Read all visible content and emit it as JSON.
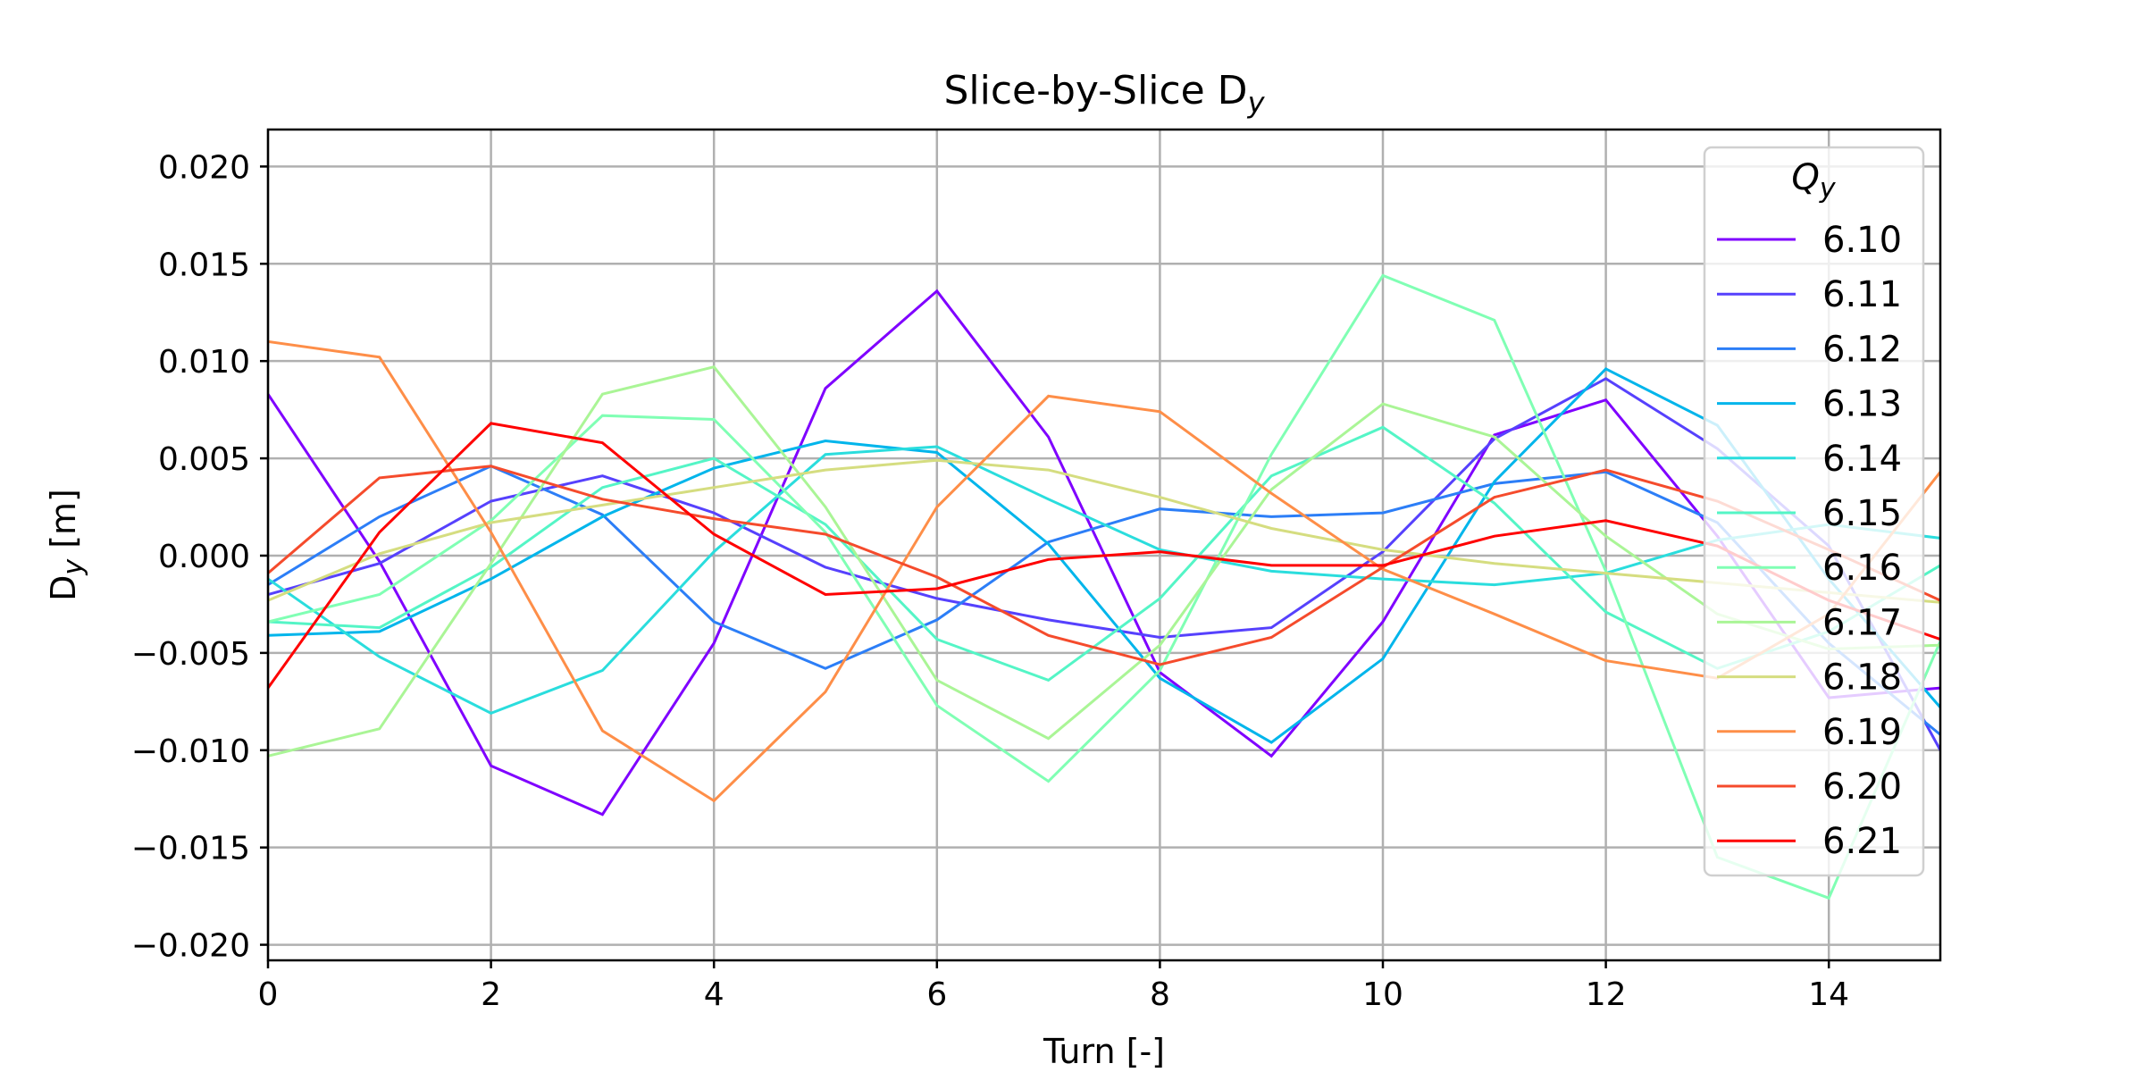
{
  "chart_data": {
    "type": "line",
    "title": "Slice-by-Slice D",
    "title_subscript": "y",
    "xlabel": "Turn [-]",
    "ylabel_main": "D",
    "ylabel_sub": "y",
    "ylabel_unit": " [m]",
    "xlim": [
      0,
      15
    ],
    "ylim": [
      -0.0208,
      0.0219
    ],
    "x_ticks": [
      0,
      2,
      4,
      6,
      8,
      10,
      12,
      14
    ],
    "y_ticks": [
      -0.02,
      -0.015,
      -0.01,
      -0.005,
      0.0,
      0.005,
      0.01,
      0.015,
      0.02
    ],
    "y_tick_labels": [
      "−0.020",
      "−0.015",
      "−0.010",
      "−0.005",
      "0.000",
      "0.005",
      "0.010",
      "0.015",
      "0.020"
    ],
    "grid": true,
    "legend": {
      "title": "Q",
      "title_subscript": "y",
      "position": "top-right"
    },
    "x": [
      0,
      1,
      2,
      3,
      4,
      5,
      6,
      7,
      8,
      9,
      10,
      11,
      12,
      13,
      14,
      15
    ],
    "series": [
      {
        "name": "6.10",
        "color": "#7f00ff",
        "values": [
          0.0083,
          -0.0003,
          -0.0108,
          -0.0133,
          -0.0045,
          0.0086,
          0.0136,
          0.0061,
          -0.006,
          -0.0103,
          -0.0034,
          0.0062,
          0.008,
          0.001,
          -0.0073,
          -0.0068
        ]
      },
      {
        "name": "6.11",
        "color": "#5641fd",
        "values": [
          -0.002,
          -0.0004,
          0.0028,
          0.0041,
          0.0022,
          -0.0006,
          -0.0022,
          -0.0033,
          -0.0042,
          -0.0037,
          0.0002,
          0.006,
          0.0091,
          0.0055,
          0.0005,
          -0.01
        ]
      },
      {
        "name": "6.12",
        "color": "#2c7ef7",
        "values": [
          -0.0015,
          0.002,
          0.0046,
          0.0021,
          -0.0034,
          -0.0058,
          -0.0033,
          0.0007,
          0.0024,
          0.002,
          0.0022,
          0.0037,
          0.0043,
          0.0017,
          -0.0045,
          -0.0092
        ]
      },
      {
        "name": "6.13",
        "color": "#00b5eb",
        "values": [
          -0.0041,
          -0.0039,
          -0.0012,
          0.002,
          0.0045,
          0.0059,
          0.0053,
          0.0006,
          -0.0063,
          -0.0096,
          -0.0053,
          0.0038,
          0.0096,
          0.0067,
          -0.0012,
          -0.0078
        ]
      },
      {
        "name": "6.14",
        "color": "#2adddd",
        "values": [
          -0.0012,
          -0.0052,
          -0.0081,
          -0.0059,
          0.0002,
          0.0052,
          0.0056,
          0.0029,
          0.0003,
          -0.0008,
          -0.0012,
          -0.0015,
          -0.0009,
          0.0008,
          0.0016,
          0.0009
        ]
      },
      {
        "name": "6.15",
        "color": "#54f5c6",
        "values": [
          -0.0034,
          -0.0037,
          -0.0006,
          0.0035,
          0.005,
          0.0016,
          -0.0043,
          -0.0064,
          -0.0022,
          0.0041,
          0.0066,
          0.0027,
          -0.0029,
          -0.0058,
          -0.0039,
          -0.0005
        ]
      },
      {
        "name": "6.16",
        "color": "#80ffb4",
        "values": [
          -0.0034,
          -0.002,
          0.0018,
          0.0072,
          0.007,
          0.0012,
          -0.0077,
          -0.0116,
          -0.0059,
          0.0052,
          0.0144,
          0.0121,
          -0.0008,
          -0.0155,
          -0.0176,
          -0.0044
        ]
      },
      {
        "name": "6.17",
        "color": "#aaf596",
        "values": [
          -0.0103,
          -0.0089,
          -0.0004,
          0.0083,
          0.0097,
          0.0025,
          -0.0064,
          -0.0094,
          -0.0046,
          0.0034,
          0.0078,
          0.0061,
          0.001,
          -0.003,
          -0.0048,
          -0.0046
        ]
      },
      {
        "name": "6.18",
        "color": "#d5dd80",
        "values": [
          -0.0023,
          0.0001,
          0.0017,
          0.0026,
          0.0035,
          0.0044,
          0.0049,
          0.0044,
          0.003,
          0.0014,
          0.0003,
          -0.0004,
          -0.0009,
          -0.0014,
          -0.0019,
          -0.0024
        ]
      },
      {
        "name": "6.19",
        "color": "#fe8e48",
        "values": [
          0.011,
          0.0102,
          0.0012,
          -0.009,
          -0.0126,
          -0.007,
          0.0025,
          0.0082,
          0.0074,
          0.0032,
          -0.0007,
          -0.003,
          -0.0054,
          -0.0063,
          -0.003,
          0.0043
        ]
      },
      {
        "name": "6.20",
        "color": "#f54b2c",
        "values": [
          -0.0009,
          0.004,
          0.0046,
          0.0029,
          0.0019,
          0.0011,
          -0.0011,
          -0.0041,
          -0.0056,
          -0.0042,
          -0.0006,
          0.003,
          0.0044,
          0.0028,
          0.0003,
          -0.0023
        ]
      },
      {
        "name": "6.21",
        "color": "#ff0000",
        "values": [
          -0.0068,
          0.0012,
          0.0068,
          0.0058,
          0.0011,
          -0.002,
          -0.0017,
          -0.0002,
          0.0002,
          -0.0005,
          -0.0005,
          0.001,
          0.0018,
          0.0005,
          -0.0023,
          -0.0043
        ]
      }
    ]
  }
}
